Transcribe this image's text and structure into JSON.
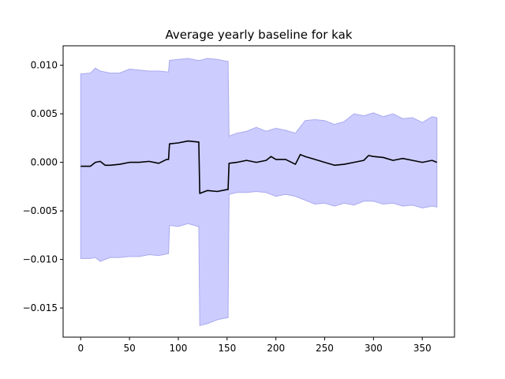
{
  "chart_data": {
    "type": "line",
    "title": "Average yearly baseline for kak",
    "xlabel": "",
    "ylabel": "",
    "xlim": [
      -18,
      383
    ],
    "ylim": [
      -0.018,
      0.012
    ],
    "xticks": [
      0,
      50,
      100,
      150,
      200,
      250,
      300,
      350
    ],
    "xtick_labels": [
      "0",
      "50",
      "100",
      "150",
      "200",
      "250",
      "300",
      "350"
    ],
    "yticks": [
      -0.015,
      -0.01,
      -0.005,
      0.0,
      0.005,
      0.01
    ],
    "ytick_labels": [
      "−0.015",
      "−0.010",
      "−0.005",
      "0.000",
      "0.005",
      "0.010"
    ],
    "grid": false,
    "colors": {
      "line": "#000000",
      "band_fill": "#ccccff",
      "band_edge": "#aaaaee"
    },
    "series": [
      {
        "role": "mean",
        "x": [
          0,
          5,
          10,
          15,
          20,
          25,
          30,
          40,
          50,
          60,
          70,
          80,
          88,
          90,
          91,
          100,
          110,
          120,
          121,
          122,
          130,
          140,
          150,
          151,
          152,
          160,
          170,
          180,
          190,
          195,
          200,
          210,
          220,
          225,
          230,
          240,
          250,
          260,
          270,
          280,
          290,
          295,
          300,
          310,
          320,
          330,
          340,
          350,
          360,
          365
        ],
        "y": [
          -0.0004,
          -0.0004,
          -0.0004,
          0.0,
          0.0001,
          -0.0003,
          -0.0003,
          -0.0002,
          0.0,
          0.0,
          0.0001,
          -0.0001,
          0.0003,
          0.0003,
          0.0019,
          0.002,
          0.0022,
          0.0021,
          0.0021,
          -0.0032,
          -0.0029,
          -0.003,
          -0.0028,
          -0.0028,
          -0.0001,
          0.0,
          0.0002,
          0.0,
          0.0002,
          0.0006,
          0.0003,
          0.0003,
          -0.0002,
          0.0008,
          0.0006,
          0.0003,
          0.0,
          -0.0003,
          -0.0002,
          0.0,
          0.0002,
          0.0007,
          0.0006,
          0.0005,
          0.0002,
          0.0004,
          0.0002,
          0.0,
          0.0002,
          0.0
        ]
      },
      {
        "role": "band-upper",
        "x": [
          0,
          10,
          15,
          20,
          30,
          40,
          50,
          60,
          70,
          80,
          90,
          91,
          100,
          110,
          120,
          121,
          122,
          130,
          140,
          150,
          151,
          152,
          160,
          170,
          180,
          190,
          200,
          210,
          220,
          230,
          240,
          250,
          260,
          270,
          280,
          290,
          300,
          310,
          320,
          330,
          340,
          350,
          360,
          365
        ],
        "y": [
          0.0091,
          0.0092,
          0.0097,
          0.0094,
          0.0092,
          0.0092,
          0.0096,
          0.0095,
          0.0094,
          0.0094,
          0.0093,
          0.0105,
          0.0106,
          0.0107,
          0.0105,
          0.0105,
          0.0105,
          0.0107,
          0.0106,
          0.0104,
          0.0104,
          0.0027,
          0.003,
          0.0032,
          0.0036,
          0.0032,
          0.0035,
          0.0033,
          0.003,
          0.0043,
          0.0044,
          0.0043,
          0.0039,
          0.0042,
          0.005,
          0.0048,
          0.0051,
          0.0047,
          0.005,
          0.0045,
          0.0046,
          0.0041,
          0.0047,
          0.0046
        ]
      },
      {
        "role": "band-lower",
        "x": [
          0,
          10,
          15,
          20,
          30,
          40,
          50,
          60,
          70,
          80,
          90,
          91,
          100,
          110,
          120,
          121,
          122,
          130,
          140,
          150,
          151,
          152,
          160,
          170,
          180,
          190,
          200,
          210,
          220,
          230,
          240,
          250,
          260,
          270,
          280,
          290,
          300,
          310,
          320,
          330,
          340,
          350,
          360,
          365
        ],
        "y": [
          -0.0099,
          -0.0099,
          -0.0098,
          -0.0102,
          -0.0098,
          -0.0098,
          -0.0097,
          -0.0097,
          -0.0095,
          -0.0096,
          -0.0094,
          -0.0065,
          -0.0066,
          -0.0063,
          -0.0066,
          -0.0066,
          -0.0168,
          -0.0166,
          -0.0162,
          -0.016,
          -0.016,
          -0.0033,
          -0.0031,
          -0.0031,
          -0.003,
          -0.0031,
          -0.0035,
          -0.0033,
          -0.0035,
          -0.0039,
          -0.0043,
          -0.0042,
          -0.0045,
          -0.0042,
          -0.0044,
          -0.004,
          -0.004,
          -0.0043,
          -0.0042,
          -0.0045,
          -0.0044,
          -0.0047,
          -0.0045,
          -0.0046
        ]
      }
    ]
  }
}
